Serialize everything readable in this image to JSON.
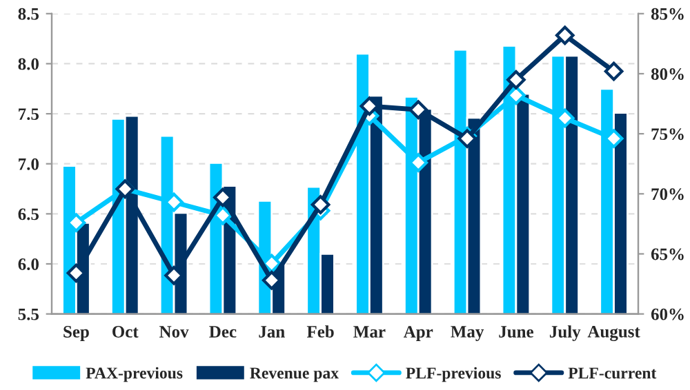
{
  "chart_data": {
    "type": "bar",
    "categories": [
      "Sep",
      "Oct",
      "Nov",
      "Dec",
      "Jan",
      "Feb",
      "Mar",
      "Apr",
      "May",
      "June",
      "July",
      "August"
    ],
    "series": [
      {
        "name": "PAX-previous",
        "color": "#00c8ff",
        "values": [
          6.98,
          7.45,
          7.28,
          7.01,
          6.63,
          6.77,
          8.1,
          7.67,
          8.14,
          8.18,
          8.08,
          7.75
        ]
      },
      {
        "name": "Revenue pax",
        "color": "#003366",
        "values": [
          6.41,
          7.48,
          6.51,
          6.78,
          6.0,
          6.1,
          7.68,
          7.55,
          7.46,
          7.7,
          8.08,
          7.51
        ]
      },
      {
        "name": "PLF-previous",
        "type": "line",
        "axis": "y2",
        "color": "#00c8ff",
        "values": [
          67.6,
          70.4,
          69.3,
          68.2,
          64.2,
          68.6,
          76.5,
          72.6,
          74.8,
          78.2,
          76.3,
          74.6
        ]
      },
      {
        "name": "PLF-current",
        "type": "line",
        "axis": "y2",
        "color": "#003366",
        "values": [
          63.4,
          70.4,
          63.2,
          69.7,
          62.8,
          69.1,
          77.3,
          77.0,
          74.6,
          79.5,
          83.2,
          80.2
        ]
      }
    ],
    "ylim": [
      5.5,
      8.5
    ],
    "yticks": [
      5.5,
      {
        "value": 6,
        "label": "6.0"
      },
      6.5,
      {
        "value": 7,
        "label": "7.0"
      },
      7.5,
      {
        "value": 8,
        "label": "8.0"
      },
      8.5
    ],
    "y2lim": [
      60,
      85
    ],
    "y2ticks": [
      {
        "value": 60,
        "label": "60%"
      },
      {
        "value": 65,
        "label": "65%"
      },
      {
        "value": 70,
        "label": "70%"
      },
      {
        "value": 75,
        "label": "75%"
      },
      {
        "value": 80,
        "label": "80%"
      },
      {
        "value": 85,
        "label": "85%"
      }
    ],
    "grid": "y",
    "legend": "bottom",
    "marker": "diamond",
    "line_style": "solid"
  }
}
